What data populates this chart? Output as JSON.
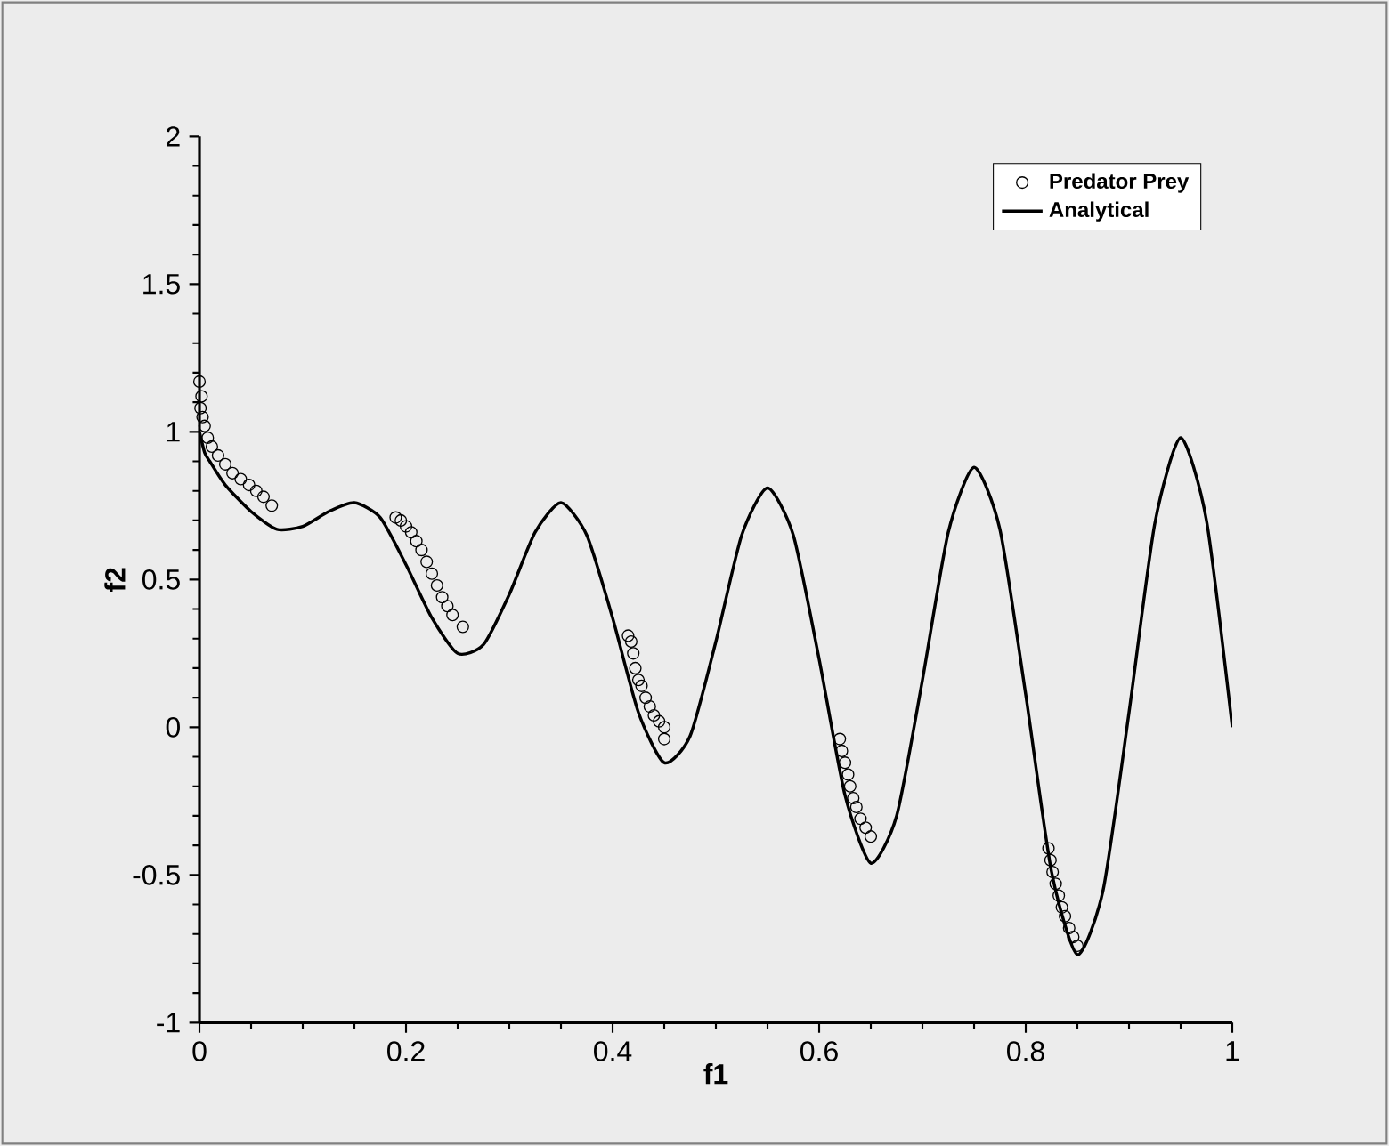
{
  "chart_data": {
    "type": "scatter",
    "xlabel": "f1",
    "ylabel": "f2",
    "xlim": [
      0,
      1
    ],
    "ylim": [
      -1,
      2
    ],
    "xticks": [
      0,
      0.2,
      0.4,
      0.6,
      0.8,
      1
    ],
    "yticks": [
      -1,
      -0.5,
      0,
      0.5,
      1,
      1.5,
      2
    ],
    "legend": "top right",
    "grid": false,
    "series": [
      {
        "name": "Predator Prey",
        "marker": "circle",
        "color": "#000000",
        "x": [
          0,
          0.002,
          0.001,
          0.003,
          0.005,
          0.008,
          0.012,
          0.018,
          0.025,
          0.032,
          0.04,
          0.048,
          0.055,
          0.062,
          0.07,
          0.19,
          0.195,
          0.2,
          0.205,
          0.21,
          0.215,
          0.22,
          0.225,
          0.23,
          0.235,
          0.24,
          0.245,
          0.255,
          0.415,
          0.418,
          0.42,
          0.422,
          0.425,
          0.428,
          0.432,
          0.436,
          0.44,
          0.445,
          0.45,
          0.45,
          0.62,
          0.622,
          0.625,
          0.628,
          0.63,
          0.633,
          0.636,
          0.64,
          0.645,
          0.65,
          0.822,
          0.824,
          0.826,
          0.829,
          0.832,
          0.835,
          0.838,
          0.842,
          0.846,
          0.85
        ],
        "values": [
          1.17,
          1.12,
          1.08,
          1.05,
          1.02,
          0.98,
          0.95,
          0.92,
          0.89,
          0.86,
          0.84,
          0.82,
          0.8,
          0.78,
          0.75,
          0.71,
          0.7,
          0.68,
          0.66,
          0.63,
          0.6,
          0.56,
          0.52,
          0.48,
          0.44,
          0.41,
          0.38,
          0.34,
          0.31,
          0.29,
          0.25,
          0.2,
          0.16,
          0.14,
          0.1,
          0.07,
          0.04,
          0.02,
          0.0,
          -0.04,
          -0.04,
          -0.08,
          -0.12,
          -0.16,
          -0.2,
          -0.24,
          -0.27,
          -0.31,
          -0.34,
          -0.37,
          -0.41,
          -0.45,
          -0.49,
          -0.53,
          -0.57,
          -0.61,
          -0.64,
          -0.68,
          -0.71,
          -0.74
        ]
      },
      {
        "name": "Analytical",
        "type": "line",
        "marker": "none",
        "line_style": "solid",
        "color": "#000000",
        "x": [
          0,
          0.005,
          0.01,
          0.025,
          0.05,
          0.075,
          0.1,
          0.125,
          0.15,
          0.175,
          0.2,
          0.225,
          0.25,
          0.275,
          0.3,
          0.325,
          0.35,
          0.375,
          0.4,
          0.425,
          0.45,
          0.475,
          0.5,
          0.525,
          0.55,
          0.575,
          0.6,
          0.625,
          0.65,
          0.675,
          0.7,
          0.725,
          0.75,
          0.775,
          0.8,
          0.825,
          0.85,
          0.875,
          0.9,
          0.925,
          0.95,
          0.975,
          1.0
        ],
        "values": [
          1,
          0.93,
          0.9,
          0.82,
          0.73,
          0.67,
          0.68,
          0.73,
          0.76,
          0.71,
          0.55,
          0.37,
          0.25,
          0.28,
          0.45,
          0.66,
          0.76,
          0.65,
          0.37,
          0.05,
          -0.12,
          -0.03,
          0.29,
          0.65,
          0.81,
          0.65,
          0.23,
          -0.23,
          -0.46,
          -0.3,
          0.16,
          0.66,
          0.88,
          0.67,
          0.11,
          -0.49,
          -0.77,
          -0.55,
          0.05,
          0.69,
          0.98,
          0.7,
          0
        ]
      }
    ]
  }
}
